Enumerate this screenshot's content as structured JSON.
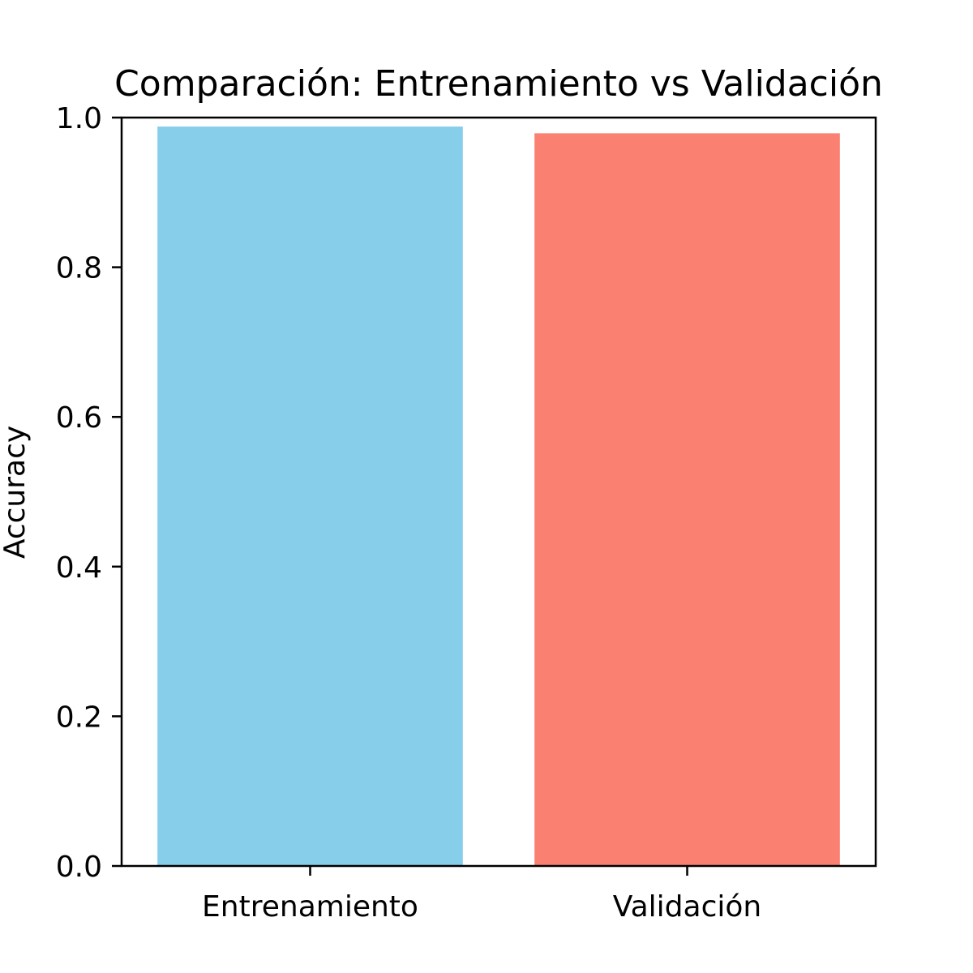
{
  "chart_data": {
    "type": "bar",
    "title": "Comparación: Entrenamiento vs Validación",
    "xlabel": "",
    "ylabel": "Accuracy",
    "categories": [
      "Entrenamiento",
      "Validación"
    ],
    "values": [
      0.988,
      0.979
    ],
    "colors": [
      "#87CEEB",
      "#FA8072"
    ],
    "ylim": [
      0,
      1.0
    ],
    "yticks": [
      "0.0",
      "0.2",
      "0.4",
      "0.6",
      "0.8",
      "1.0"
    ],
    "ytick_values": [
      0.0,
      0.2,
      0.4,
      0.6,
      0.8,
      1.0
    ],
    "grid": false,
    "legend": "none"
  }
}
